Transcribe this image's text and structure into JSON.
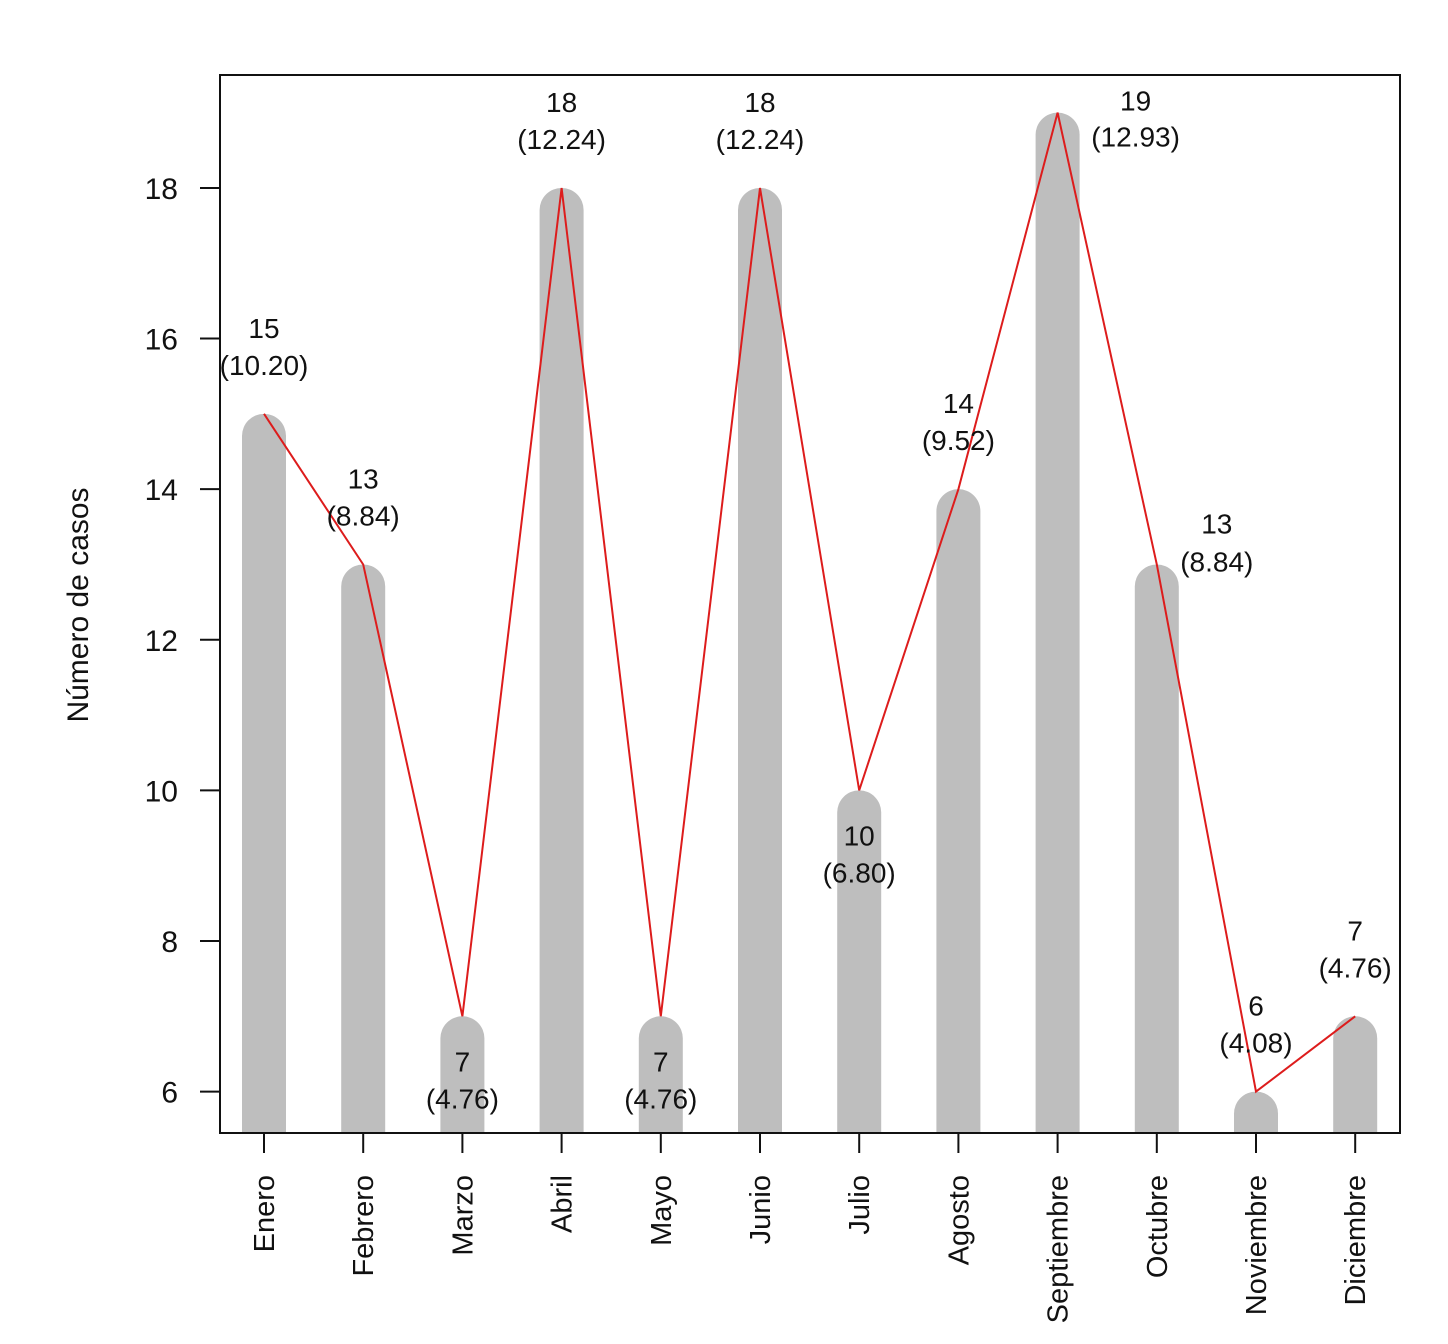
{
  "chart_data": {
    "type": "bar",
    "title": "",
    "xlabel": "",
    "ylabel": "Número de casos",
    "categories": [
      "Enero",
      "Febrero",
      "Marzo",
      "Abril",
      "Mayo",
      "Junio",
      "Julio",
      "Agosto",
      "Septiembre",
      "Octubre",
      "Noviembre",
      "Diciembre"
    ],
    "values": [
      15,
      13,
      7,
      18,
      7,
      18,
      10,
      14,
      19,
      13,
      6,
      7
    ],
    "percent_labels": [
      "(10.20)",
      "(8.84)",
      "(4.76)",
      "(12.24)",
      "(4.76)",
      "(12.24)",
      "(6.80)",
      "(9.52)",
      "(12.93)",
      "(8.84)",
      "(4.08)",
      "(4.76)"
    ],
    "count_labels": [
      "15",
      "13",
      "7",
      "18",
      "7",
      "18",
      "10",
      "14",
      "19",
      "13",
      "6",
      "7"
    ],
    "ylim": [
      5.45,
      19.5
    ],
    "yticks": [
      6,
      8,
      10,
      12,
      14,
      16,
      18
    ],
    "ytick_labels": [
      "6",
      "8",
      "10",
      "12",
      "14",
      "16",
      "18"
    ],
    "overlay_line": true,
    "bar_color": "#bebebe",
    "line_color": "#dd1c1c",
    "grid": false,
    "legend": "none"
  }
}
